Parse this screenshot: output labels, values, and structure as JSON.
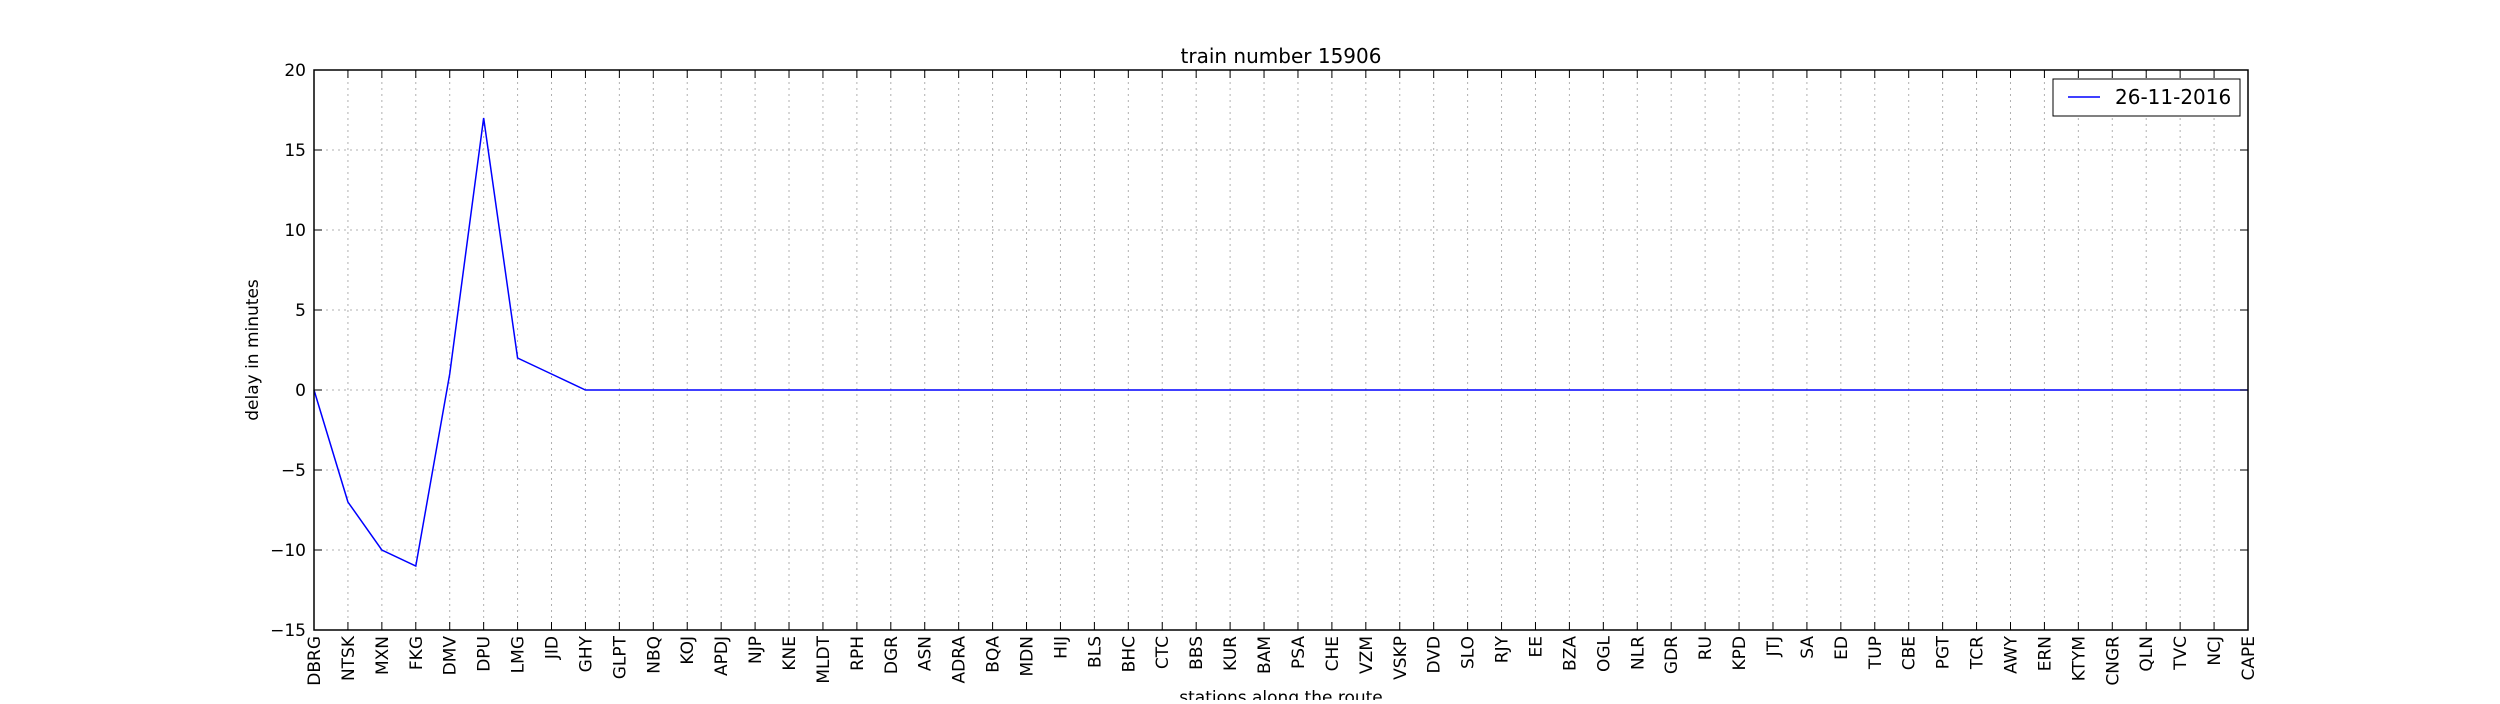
{
  "chart_data": {
    "type": "line",
    "title": "train number 15906",
    "xlabel": "stations along the route",
    "ylabel": "delay in minutes",
    "ylim": [
      -15,
      20
    ],
    "yticks": [
      -15,
      -10,
      -5,
      0,
      5,
      10,
      15,
      20
    ],
    "ytick_labels": [
      "−15",
      "−10",
      "−5",
      "0",
      "5",
      "10",
      "15",
      "20"
    ],
    "grid": true,
    "legend_position": "top-right",
    "categories": [
      "DBRG",
      "NTSK",
      "MXN",
      "FKG",
      "DMV",
      "DPU",
      "LMG",
      "JID",
      "GHY",
      "GLPT",
      "NBQ",
      "KOJ",
      "APDJ",
      "NJP",
      "KNE",
      "MLDT",
      "RPH",
      "DGR",
      "ASN",
      "ADRA",
      "BQA",
      "MDN",
      "HIJ",
      "BLS",
      "BHC",
      "CTC",
      "BBS",
      "KUR",
      "BAM",
      "PSA",
      "CHE",
      "VZM",
      "VSKP",
      "DVD",
      "SLO",
      "RJY",
      "EE",
      "BZA",
      "OGL",
      "NLR",
      "GDR",
      "RU",
      "KPD",
      "JTJ",
      "SA",
      "ED",
      "TUP",
      "CBE",
      "PGT",
      "TCR",
      "AWY",
      "ERN",
      "KTYM",
      "CNGR",
      "QLN",
      "TVC",
      "NCJ",
      "CAPE"
    ],
    "series": [
      {
        "name": "26-11-2016",
        "color": "#0000ff",
        "values": [
          0,
          -7,
          -10,
          -11,
          1,
          17,
          2,
          1,
          0,
          0,
          0,
          0,
          0,
          0,
          0,
          0,
          0,
          0,
          0,
          0,
          0,
          0,
          0,
          0,
          0,
          0,
          0,
          0,
          0,
          0,
          0,
          0,
          0,
          0,
          0,
          0,
          0,
          0,
          0,
          0,
          0,
          0,
          0,
          0,
          0,
          0,
          0,
          0,
          0,
          0,
          0,
          0,
          0,
          0,
          0,
          0,
          0,
          0
        ]
      }
    ]
  }
}
